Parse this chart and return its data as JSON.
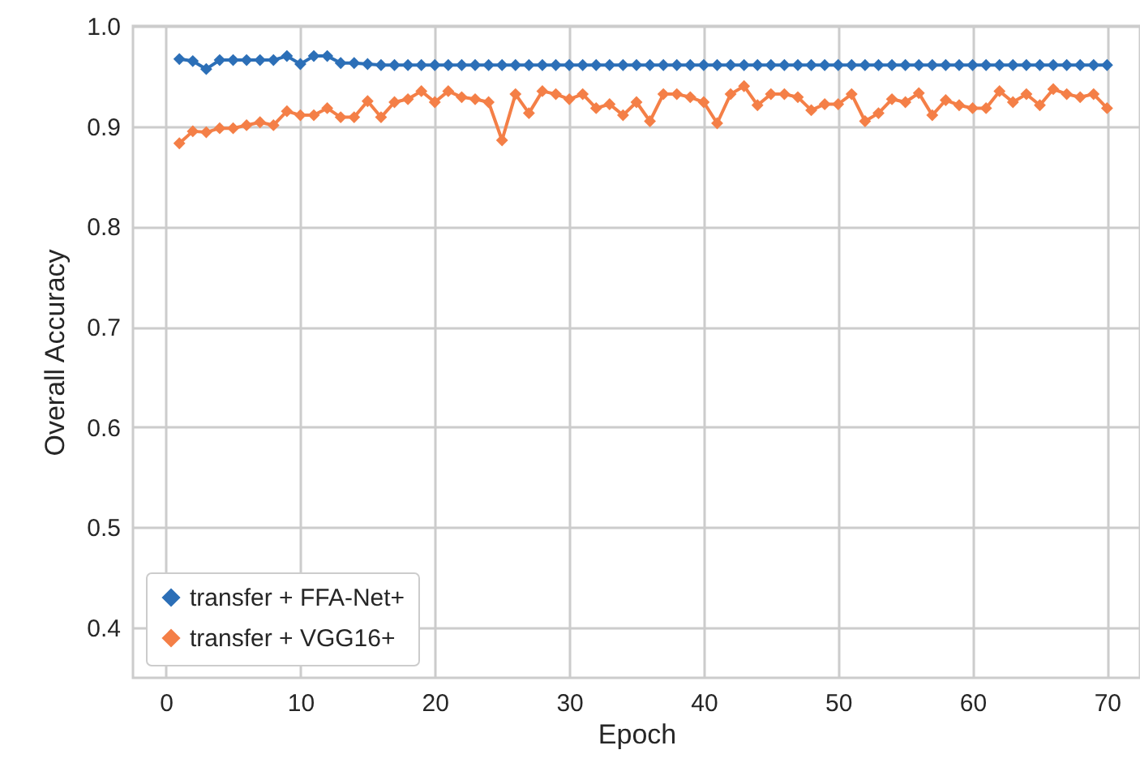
{
  "chart_data": {
    "type": "line",
    "xlabel": "Epoch",
    "ylabel": "Overall Accuracy",
    "x": [
      1,
      2,
      3,
      4,
      5,
      6,
      7,
      8,
      9,
      10,
      11,
      12,
      13,
      14,
      15,
      16,
      17,
      18,
      19,
      20,
      21,
      22,
      23,
      24,
      25,
      26,
      27,
      28,
      29,
      30,
      31,
      32,
      33,
      34,
      35,
      36,
      37,
      38,
      39,
      40,
      41,
      42,
      43,
      44,
      45,
      46,
      47,
      48,
      49,
      50,
      51,
      52,
      53,
      54,
      55,
      56,
      57,
      58,
      59,
      60,
      61,
      62,
      63,
      64,
      65,
      66,
      67,
      68,
      69,
      70
    ],
    "series": [
      {
        "name": "transfer + FFA-Net+",
        "color": "#2c6fb7",
        "values": [
          0.967,
          0.965,
          0.957,
          0.966,
          0.966,
          0.966,
          0.966,
          0.966,
          0.97,
          0.962,
          0.97,
          0.97,
          0.963,
          0.963,
          0.962,
          0.961,
          0.961,
          0.961,
          0.961,
          0.961,
          0.961,
          0.961,
          0.961,
          0.961,
          0.961,
          0.961,
          0.961,
          0.961,
          0.961,
          0.961,
          0.961,
          0.961,
          0.961,
          0.961,
          0.961,
          0.961,
          0.961,
          0.961,
          0.961,
          0.961,
          0.961,
          0.961,
          0.961,
          0.961,
          0.961,
          0.961,
          0.961,
          0.961,
          0.961,
          0.961,
          0.961,
          0.961,
          0.961,
          0.961,
          0.961,
          0.961,
          0.961,
          0.961,
          0.961,
          0.961,
          0.961,
          0.961,
          0.961,
          0.961,
          0.961,
          0.961,
          0.961,
          0.961,
          0.961,
          0.961
        ]
      },
      {
        "name": "transfer + VGG16+",
        "color": "#f47f47",
        "values": [
          0.883,
          0.895,
          0.894,
          0.898,
          0.898,
          0.901,
          0.904,
          0.901,
          0.915,
          0.911,
          0.911,
          0.918,
          0.909,
          0.909,
          0.925,
          0.909,
          0.924,
          0.927,
          0.935,
          0.924,
          0.935,
          0.929,
          0.927,
          0.924,
          0.886,
          0.932,
          0.913,
          0.935,
          0.932,
          0.927,
          0.932,
          0.918,
          0.922,
          0.911,
          0.924,
          0.905,
          0.932,
          0.932,
          0.929,
          0.924,
          0.903,
          0.932,
          0.94,
          0.921,
          0.932,
          0.932,
          0.929,
          0.916,
          0.922,
          0.922,
          0.932,
          0.905,
          0.913,
          0.927,
          0.924,
          0.933,
          0.911,
          0.926,
          0.921,
          0.918,
          0.918,
          0.935,
          0.924,
          0.932,
          0.921,
          0.937,
          0.932,
          0.929,
          0.932,
          0.918
        ]
      }
    ],
    "xlim": [
      -2.45,
      72.45
    ],
    "ylim": [
      0.35,
      1.0
    ],
    "xticks": [
      0,
      10,
      20,
      30,
      40,
      50,
      60,
      70
    ],
    "yticks": [
      0.4,
      0.5,
      0.6,
      0.7,
      0.8,
      0.9,
      {
        "value": 1,
        "label": "1.0"
      }
    ],
    "grid": true,
    "legend": "bottom left",
    "marker": "diamond",
    "line_style": "solid"
  }
}
